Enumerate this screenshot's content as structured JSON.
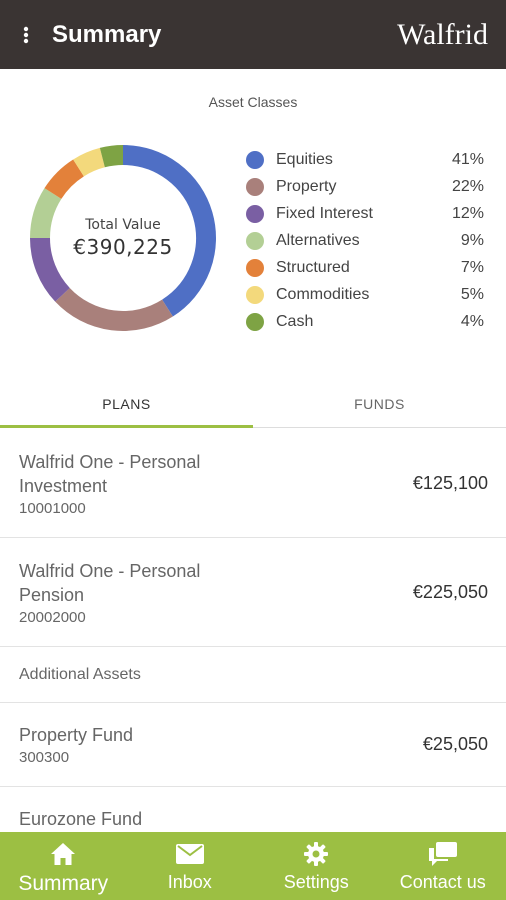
{
  "header": {
    "title": "Summary",
    "logo_text": "Walfrid",
    "menu_icon": "vertical-dots-icon"
  },
  "asset_classes": {
    "title": "Asset Classes",
    "total_label": "Total Value",
    "total_value": "€390,225",
    "items": [
      {
        "name": "Equities",
        "pct": "41%",
        "color": "#4f6fc5"
      },
      {
        "name": "Property",
        "pct": "22%",
        "color": "#a9807b"
      },
      {
        "name": "Fixed Interest",
        "pct": "12%",
        "color": "#7a5fa3"
      },
      {
        "name": "Alternatives",
        "pct": "9%",
        "color": "#b3cf95"
      },
      {
        "name": "Structured",
        "pct": "7%",
        "color": "#e3813a"
      },
      {
        "name": "Commodities",
        "pct": "5%",
        "color": "#f3d97c"
      },
      {
        "name": "Cash",
        "pct": "4%",
        "color": "#7ea344"
      }
    ]
  },
  "chart_data": {
    "type": "pie",
    "categories": [
      "Equities",
      "Property",
      "Fixed Interest",
      "Alternatives",
      "Structured",
      "Commodities",
      "Cash"
    ],
    "values": [
      41,
      22,
      12,
      9,
      7,
      5,
      4
    ],
    "title": "Asset Classes"
  },
  "tabs": [
    {
      "label": "PLANS",
      "active": true
    },
    {
      "label": "FUNDS",
      "active": false
    }
  ],
  "plans": [
    {
      "name": "Walfrid One - Personal Investment",
      "account": "10001000",
      "amount": "€125,100"
    },
    {
      "name": "Walfrid One - Personal Pension",
      "account": "20002000",
      "amount": "€225,050"
    }
  ],
  "additional_assets": {
    "heading": "Additional Assets",
    "items": [
      {
        "name": "Property Fund",
        "account": "300300",
        "amount": "€25,050"
      },
      {
        "name": "Eurozone Fund"
      }
    ]
  },
  "bottom_nav": [
    {
      "label": "Summary",
      "icon": "home-icon",
      "active": true
    },
    {
      "label": "Inbox",
      "icon": "mail-icon",
      "active": false
    },
    {
      "label": "Settings",
      "icon": "gear-icon",
      "active": false
    },
    {
      "label": "Contact us",
      "icon": "chat-icon",
      "active": false
    }
  ]
}
